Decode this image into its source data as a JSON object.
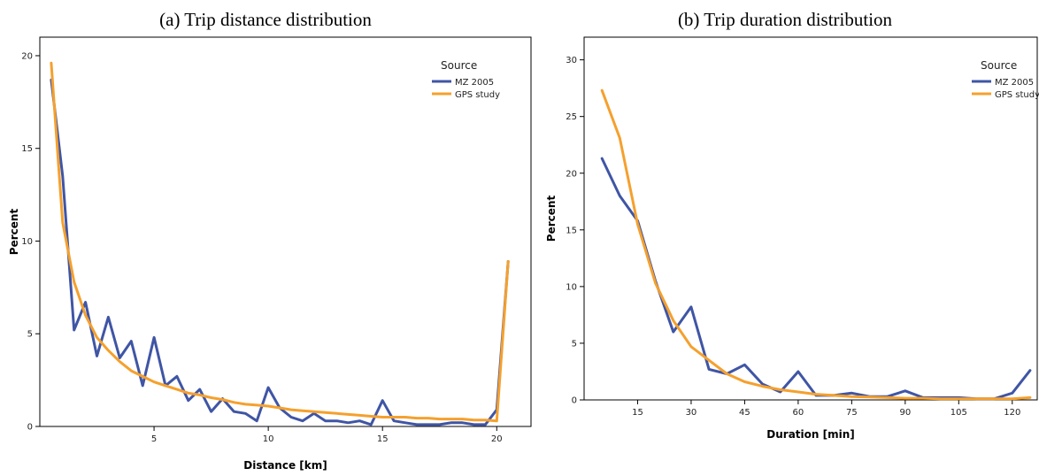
{
  "captions": {
    "a": "(a)  Trip distance distribution",
    "b": "(b)  Trip duration distribution"
  },
  "chart_data": [
    {
      "type": "line",
      "xlabel": "Distance [km]",
      "ylabel": "Percent",
      "xlim": [
        0,
        21.5
      ],
      "ylim": [
        0,
        21
      ],
      "xticks": [
        5,
        10,
        15,
        20
      ],
      "yticks": [
        0,
        5,
        10,
        15,
        20
      ],
      "legend": {
        "title": "Source",
        "position": "top-right"
      },
      "series": [
        {
          "name": "MZ 2005",
          "color": "#3f55a5",
          "x": [
            0.5,
            1.0,
            1.5,
            2.0,
            2.5,
            3.0,
            3.5,
            4.0,
            4.5,
            5.0,
            5.5,
            6.0,
            6.5,
            7.0,
            7.5,
            8.0,
            8.5,
            9.0,
            9.5,
            10.0,
            10.5,
            11.0,
            11.5,
            12.0,
            12.5,
            13.0,
            13.5,
            14.0,
            14.5,
            15.0,
            15.5,
            16.0,
            16.5,
            17.0,
            17.5,
            18.0,
            18.5,
            19.0,
            19.5,
            20.0,
            20.5
          ],
          "y": [
            18.7,
            13.5,
            5.2,
            6.7,
            3.8,
            5.9,
            3.7,
            4.6,
            2.2,
            4.8,
            2.2,
            2.7,
            1.4,
            2.0,
            0.8,
            1.5,
            0.8,
            0.7,
            0.3,
            2.1,
            1.0,
            0.5,
            0.3,
            0.7,
            0.3,
            0.3,
            0.2,
            0.3,
            0.1,
            1.4,
            0.3,
            0.2,
            0.1,
            0.1,
            0.1,
            0.2,
            0.2,
            0.1,
            0.1,
            0.9,
            8.9
          ]
        },
        {
          "name": "GPS study",
          "color": "#f5a02d",
          "x": [
            0.5,
            1.0,
            1.5,
            2.0,
            2.5,
            3.0,
            3.5,
            4.0,
            4.5,
            5.0,
            5.5,
            6.0,
            6.5,
            7.0,
            7.5,
            8.0,
            8.5,
            9.0,
            9.5,
            10.0,
            10.5,
            11.0,
            11.5,
            12.0,
            12.5,
            13.0,
            13.5,
            14.0,
            14.5,
            15.0,
            15.5,
            16.0,
            16.5,
            17.0,
            17.5,
            18.0,
            18.5,
            19.0,
            19.5,
            20.0,
            20.5
          ],
          "y": [
            19.6,
            11.0,
            7.8,
            6.0,
            4.8,
            4.1,
            3.5,
            3.0,
            2.7,
            2.4,
            2.2,
            2.0,
            1.8,
            1.7,
            1.55,
            1.45,
            1.3,
            1.2,
            1.15,
            1.1,
            1.0,
            0.9,
            0.85,
            0.8,
            0.75,
            0.7,
            0.65,
            0.6,
            0.55,
            0.5,
            0.5,
            0.5,
            0.45,
            0.45,
            0.4,
            0.4,
            0.4,
            0.35,
            0.35,
            0.3,
            8.9
          ]
        }
      ]
    },
    {
      "type": "line",
      "xlabel": "Duration [min]",
      "ylabel": "Percent",
      "xlim": [
        0,
        127
      ],
      "ylim": [
        0,
        32
      ],
      "xticks": [
        15,
        30,
        45,
        60,
        75,
        90,
        105,
        120
      ],
      "yticks": [
        0,
        5,
        10,
        15,
        20,
        25,
        30
      ],
      "legend": {
        "title": "Source",
        "position": "top-right"
      },
      "series": [
        {
          "name": "MZ 2005",
          "color": "#3f55a5",
          "x": [
            5,
            10,
            15,
            20,
            25,
            30,
            35,
            40,
            45,
            50,
            55,
            60,
            65,
            70,
            75,
            80,
            85,
            90,
            95,
            100,
            105,
            110,
            115,
            120,
            125
          ],
          "y": [
            21.3,
            18.0,
            15.8,
            10.5,
            6.0,
            8.2,
            2.7,
            2.3,
            3.1,
            1.4,
            0.7,
            2.5,
            0.4,
            0.4,
            0.6,
            0.3,
            0.3,
            0.8,
            0.2,
            0.2,
            0.2,
            0.1,
            0.1,
            0.6,
            2.6
          ]
        },
        {
          "name": "GPS study",
          "color": "#f5a02d",
          "x": [
            5,
            10,
            15,
            20,
            25,
            30,
            35,
            40,
            45,
            50,
            55,
            60,
            65,
            70,
            75,
            80,
            85,
            90,
            95,
            100,
            105,
            110,
            115,
            120,
            125
          ],
          "y": [
            27.3,
            23.1,
            15.5,
            10.3,
            7.0,
            4.7,
            3.5,
            2.3,
            1.6,
            1.2,
            0.9,
            0.7,
            0.5,
            0.4,
            0.3,
            0.25,
            0.2,
            0.15,
            0.15,
            0.1,
            0.1,
            0.1,
            0.1,
            0.1,
            0.2
          ]
        }
      ]
    }
  ]
}
